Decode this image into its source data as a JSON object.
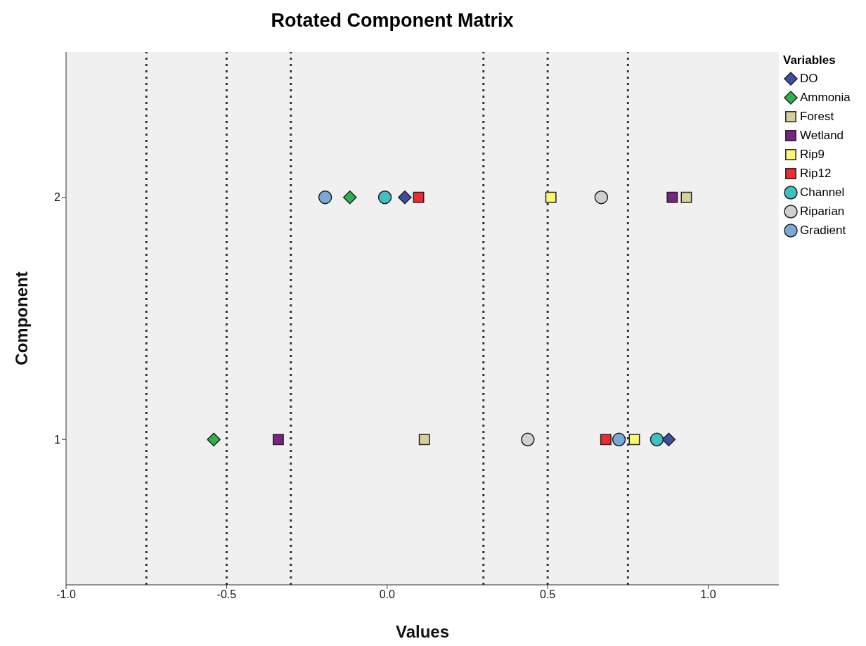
{
  "chart_data": {
    "type": "scatter",
    "title": "Rotated Component Matrix",
    "xlabel": "Values",
    "ylabel": "Component",
    "legend_title": "Variables",
    "xlim": [
      -1,
      1.22
    ],
    "xticks": [
      {
        "value": -1,
        "label": "-1.0"
      },
      {
        "value": -0.5,
        "label": "-0.5"
      },
      {
        "value": 0,
        "label": "0.0"
      },
      {
        "value": 0.5,
        "label": "0.5"
      },
      {
        "value": 1,
        "label": "1.0"
      }
    ],
    "ylim": [
      0.4,
      2.6
    ],
    "yticks": [
      1,
      2
    ],
    "grid": false,
    "legend": "right",
    "ref_lines": [
      {
        "axis": "x",
        "value": -0.75,
        "line_style": "dotted",
        "color": "#333333"
      },
      {
        "axis": "x",
        "value": -0.5,
        "line_style": "dotted",
        "color": "#333333"
      },
      {
        "axis": "x",
        "value": -0.3,
        "line_style": "dotted",
        "color": "#333333"
      },
      {
        "axis": "x",
        "value": 0.3,
        "line_style": "dotted",
        "color": "#333333"
      },
      {
        "axis": "x",
        "value": 0.5,
        "line_style": "dotted",
        "color": "#333333"
      },
      {
        "axis": "x",
        "value": 0.75,
        "line_style": "dotted",
        "color": "#333333"
      }
    ],
    "series": [
      {
        "name": "DO",
        "color": "#3a50a2",
        "marker": "diamond",
        "x": [
          0.877,
          0.055
        ],
        "values": [
          1,
          2
        ]
      },
      {
        "name": "Ammonia",
        "color": "#2db34a",
        "marker": "diamond",
        "x": [
          -0.54,
          -0.116
        ],
        "values": [
          1,
          2
        ]
      },
      {
        "name": "Forest",
        "color": "#d5cf98",
        "marker": "square",
        "x": [
          0.116,
          0.932
        ],
        "values": [
          1,
          2
        ]
      },
      {
        "name": "Wetland",
        "color": "#7a2380",
        "marker": "square",
        "x": [
          -0.339,
          0.888
        ],
        "values": [
          1,
          2
        ]
      },
      {
        "name": "Rip9",
        "color": "#fbf66e",
        "marker": "square",
        "x": [
          0.77,
          0.51
        ],
        "values": [
          1,
          2
        ]
      },
      {
        "name": "Rip12",
        "color": "#ee2c30",
        "marker": "square",
        "x": [
          0.681,
          0.098
        ],
        "values": [
          1,
          2
        ]
      },
      {
        "name": "Channel",
        "color": "#40c0c0",
        "marker": "circle",
        "x": [
          0.84,
          -0.007
        ],
        "values": [
          1,
          2
        ]
      },
      {
        "name": "Riparian",
        "color": "#d0d0d0",
        "marker": "circle",
        "x": [
          0.438,
          0.667
        ],
        "values": [
          1,
          2
        ]
      },
      {
        "name": "Gradient",
        "color": "#7aa8d8",
        "marker": "circle",
        "x": [
          0.722,
          -0.193
        ],
        "values": [
          1,
          2
        ]
      }
    ]
  }
}
